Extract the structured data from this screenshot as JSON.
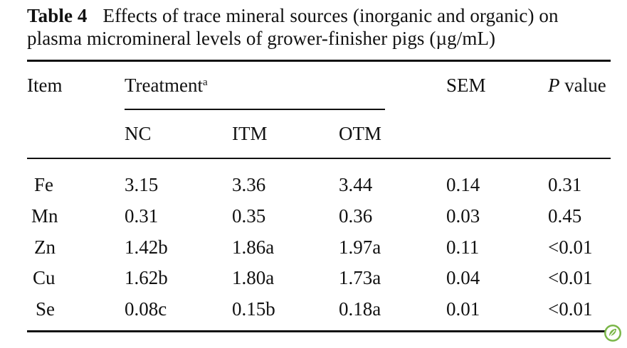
{
  "caption": {
    "label": "Table 4",
    "line1": "Effects of trace mineral sources (inorganic and organic) on",
    "line2": "plasma micromineral levels of grower-finisher pigs (µg/mL)"
  },
  "header": {
    "item": "Item",
    "treatment": "Treatment",
    "treatment_sup": "a",
    "sem": "SEM",
    "p_italic": "P",
    "p_rest": " value",
    "sub": [
      "NC",
      "ITM",
      "OTM"
    ]
  },
  "rows": [
    {
      "item": "Fe",
      "nc": "3.15",
      "itm": "3.36",
      "otm": "3.44",
      "sem": "0.14",
      "p": "0.31"
    },
    {
      "item": "Mn",
      "nc": "0.31",
      "itm": "0.35",
      "otm": "0.36",
      "sem": "0.03",
      "p": "0.45"
    },
    {
      "item": "Zn",
      "nc": "1.42b",
      "itm": "1.86a",
      "otm": "1.97a",
      "sem": "0.11",
      "p": "<0.01"
    },
    {
      "item": "Cu",
      "nc": "1.62b",
      "itm": "1.80a",
      "otm": "1.73a",
      "sem": "0.04",
      "p": "<0.01"
    },
    {
      "item": "Se",
      "nc": "0.08c",
      "itm": "0.15b",
      "otm": "0.18a",
      "sem": "0.01",
      "p": "<0.01"
    }
  ],
  "icons": {
    "publisher_logo": "springer-leaf-icon",
    "publisher_logo_color": "#7ab648"
  }
}
